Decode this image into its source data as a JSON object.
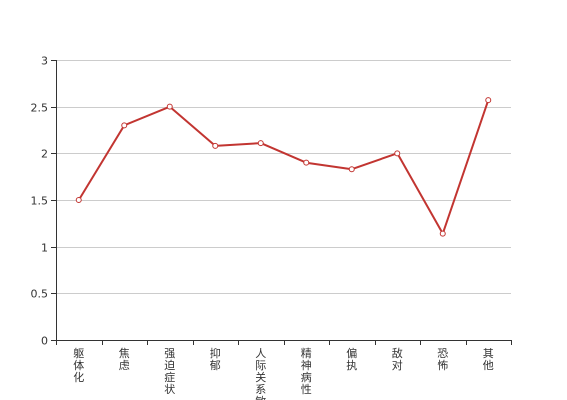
{
  "chart_data": {
    "type": "line",
    "categories": [
      "躯体化",
      "焦虑",
      "强迫症状",
      "抑郁",
      "人际关系敏感",
      "精神病性",
      "偏执",
      "敌对",
      "恐怖",
      "其他"
    ],
    "series": [
      {
        "values": [
          1.5,
          2.3,
          2.5,
          2.08,
          2.11,
          1.9,
          1.83,
          2.0,
          1.14,
          2.57
        ]
      }
    ],
    "yticks": [
      "0",
      "0.5",
      "1",
      "1.5",
      "2",
      "2.5",
      "3"
    ],
    "ylim": [
      0,
      3
    ],
    "grid": true,
    "legend": "none",
    "colors": {
      "line": "#c23531",
      "grid": "#cccccc",
      "axis": "#333333",
      "marker_fill": "#ffffff"
    }
  }
}
